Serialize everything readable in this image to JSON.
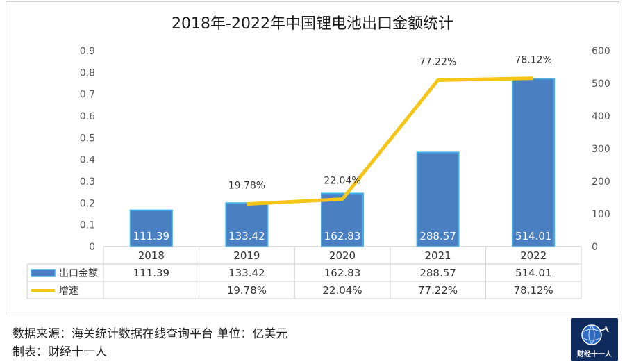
{
  "chart_data": {
    "type": "bar",
    "title": "2018年-2022年中国锂电池出口金额统计",
    "categories": [
      "2018",
      "2019",
      "2020",
      "2021",
      "2022"
    ],
    "series": [
      {
        "name": "出口金额",
        "type": "bar",
        "axis": "right",
        "color": "#4a7fc1",
        "values": [
          111.39,
          133.42,
          162.83,
          288.57,
          514.01
        ],
        "labels": [
          "111.39",
          "133.42",
          "162.83",
          "288.57",
          "514.01"
        ]
      },
      {
        "name": "增速",
        "type": "line",
        "axis": "right",
        "color": "#f5c518",
        "values": [
          null,
          19.78,
          22.04,
          77.22,
          78.12
        ],
        "labels": [
          "",
          "19.78%",
          "22.04%",
          "77.22%",
          "78.12%"
        ]
      }
    ],
    "y_left": {
      "min": 0,
      "max": 0.9,
      "ticks": [
        "0",
        "0.1",
        "0.2",
        "0.3",
        "0.4",
        "0.5",
        "0.6",
        "0.7",
        "0.8",
        "0.9"
      ]
    },
    "y_right": {
      "min": 0,
      "max": 600,
      "ticks": [
        "0",
        "100",
        "200",
        "300",
        "400",
        "500",
        "600"
      ]
    },
    "legend": "data-table",
    "table": {
      "rows": [
        {
          "name": "出口金额",
          "cells": [
            "111.39",
            "133.42",
            "162.83",
            "288.57",
            "514.01"
          ]
        },
        {
          "name": "增速",
          "cells": [
            "",
            "19.78%",
            "22.04%",
            "77.22%",
            "78.12%"
          ]
        }
      ]
    }
  },
  "footer": {
    "source": "数据来源：海关统计数据在线查询平台 单位：亿美元",
    "maker": "制表：财经十一人"
  },
  "logo": {
    "text": "财经十一人"
  }
}
